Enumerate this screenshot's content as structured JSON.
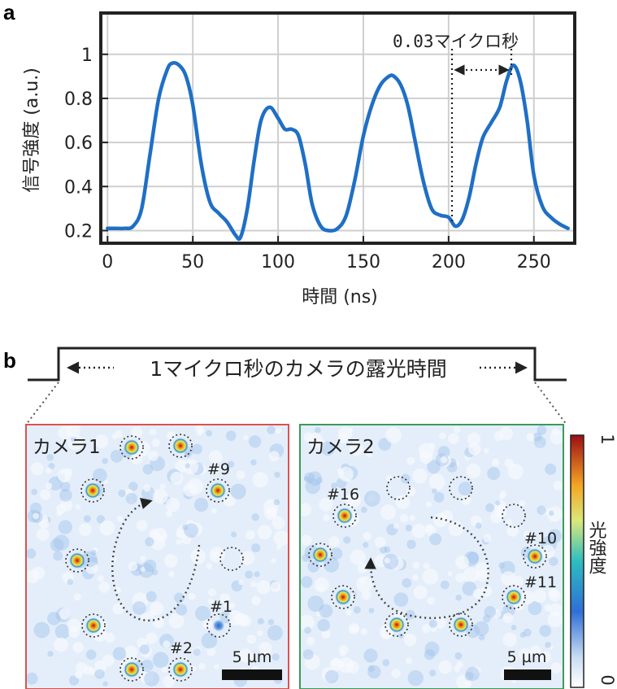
{
  "panel_a": {
    "letter": "a",
    "annotation": "0.03マイクロ秒"
  },
  "panel_b": {
    "letter": "b",
    "exposure_label": "1マイクロ秒のカメラの露光時間",
    "camera1": {
      "title": "カメラ1",
      "border_color": "#d9534f",
      "spot_labels": [
        "#9",
        "#1",
        "#2"
      ],
      "scalebar_label": "5 µm"
    },
    "camera2": {
      "title": "カメラ2",
      "border_color": "#3a9a5a",
      "spot_labels": [
        "#16",
        "#10",
        "#11"
      ],
      "scalebar_label": "5 µm"
    },
    "colorbar": {
      "label": "光強度",
      "max_label": "1",
      "min_label": "0"
    }
  },
  "chart_data": {
    "type": "line",
    "title": "",
    "xlabel": "時間 (ns)",
    "ylabel": "信号強度 (a.u.)",
    "xlim": [
      -3,
      273
    ],
    "ylim": [
      0.15,
      1.18
    ],
    "xticks": [
      0,
      50,
      100,
      150,
      200,
      250
    ],
    "yticks": [
      0.2,
      0.4,
      0.6,
      0.8,
      1
    ],
    "grid": true,
    "line_color": "#1f6fc5",
    "series": [
      {
        "x": [
          0,
          5,
          10,
          15,
          20,
          25,
          30,
          35,
          38,
          42,
          46,
          50,
          55,
          60,
          65,
          70,
          75,
          78,
          82,
          86,
          90,
          95,
          100,
          104,
          108,
          112,
          116,
          120,
          125,
          130,
          135,
          140,
          145,
          150,
          155,
          160,
          165,
          168,
          172,
          176,
          180,
          185,
          190,
          195,
          200,
          204,
          208,
          212,
          216,
          220,
          225,
          230,
          234,
          238,
          242,
          246,
          250,
          255,
          260,
          265,
          270
        ],
        "y": [
          0.21,
          0.21,
          0.21,
          0.22,
          0.3,
          0.55,
          0.8,
          0.93,
          0.96,
          0.95,
          0.9,
          0.77,
          0.5,
          0.33,
          0.28,
          0.24,
          0.18,
          0.17,
          0.3,
          0.52,
          0.7,
          0.76,
          0.71,
          0.66,
          0.66,
          0.63,
          0.5,
          0.32,
          0.22,
          0.2,
          0.21,
          0.27,
          0.43,
          0.63,
          0.77,
          0.86,
          0.9,
          0.9,
          0.86,
          0.77,
          0.62,
          0.43,
          0.3,
          0.27,
          0.26,
          0.22,
          0.25,
          0.35,
          0.5,
          0.62,
          0.69,
          0.76,
          0.88,
          0.95,
          0.88,
          0.7,
          0.45,
          0.31,
          0.26,
          0.23,
          0.21
        ]
      }
    ]
  }
}
